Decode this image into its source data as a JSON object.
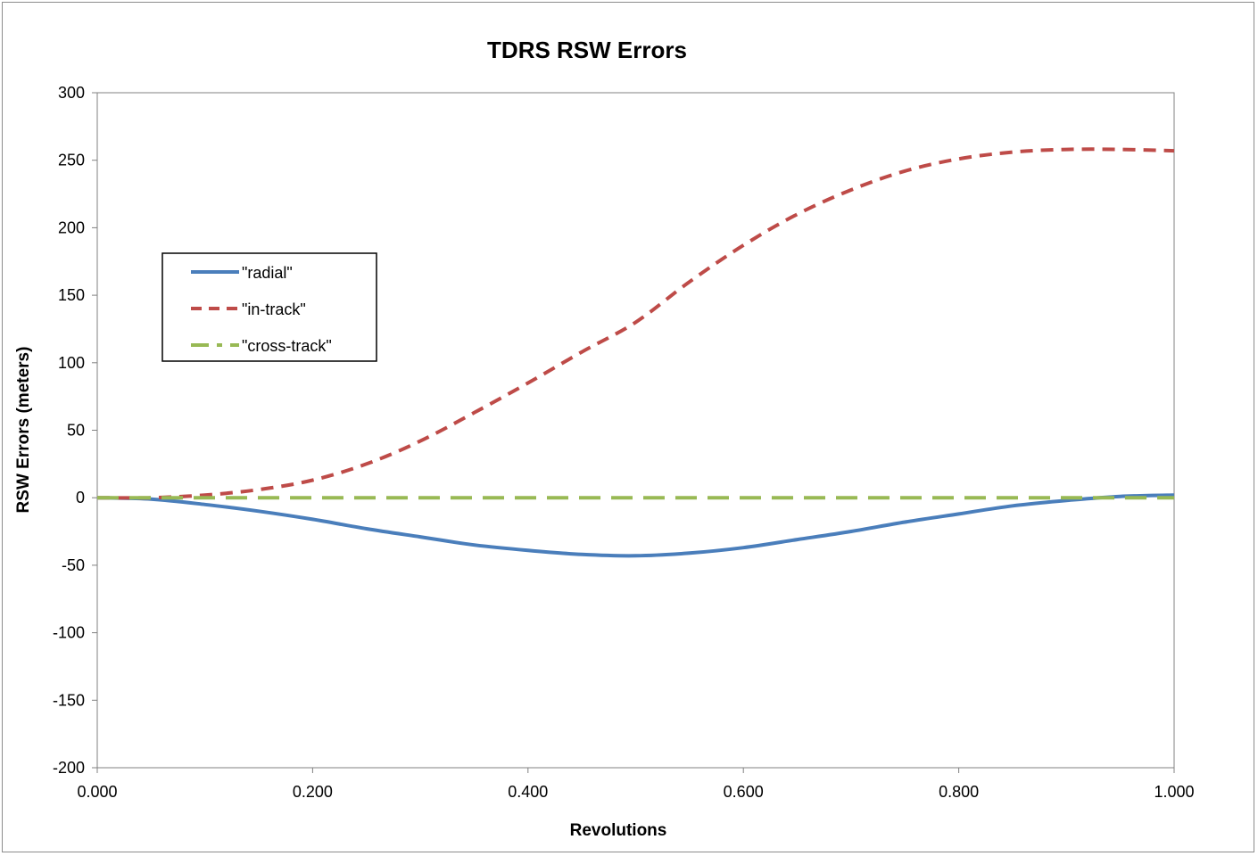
{
  "chart_data": {
    "type": "line",
    "title": "TDRS RSW Errors",
    "xlabel": "Revolutions",
    "ylabel": "RSW Errors (meters)",
    "xlim": [
      0,
      1
    ],
    "ylim": [
      -200,
      300
    ],
    "x_ticks": [
      "0.000",
      "0.200",
      "0.400",
      "0.600",
      "0.800",
      "1.000"
    ],
    "y_ticks": [
      "300",
      "250",
      "200",
      "150",
      "100",
      "50",
      "0",
      "-50",
      "-100",
      "-150",
      "-200"
    ],
    "grid": false,
    "legend_position": "upper-left",
    "x": [
      0.0,
      0.05,
      0.1,
      0.15,
      0.2,
      0.25,
      0.3,
      0.35,
      0.4,
      0.45,
      0.5,
      0.55,
      0.6,
      0.65,
      0.7,
      0.75,
      0.8,
      0.85,
      0.9,
      0.95,
      1.0
    ],
    "series": [
      {
        "name": "\"radial\"",
        "color": "#4a7ebb",
        "style": "solid",
        "values": [
          0,
          -1,
          -5,
          -10,
          -16,
          -23,
          -29,
          -35,
          -39,
          -42,
          -43,
          -41,
          -37,
          -31,
          -25,
          -18,
          -12,
          -6,
          -2,
          1,
          2
        ]
      },
      {
        "name": "\"in-track\"",
        "color": "#be4b48",
        "style": "dashed",
        "values": [
          0,
          0,
          2,
          6,
          13,
          25,
          42,
          63,
          85,
          108,
          130,
          160,
          187,
          210,
          228,
          242,
          251,
          256,
          258,
          258,
          257
        ]
      },
      {
        "name": "\"cross-track\"",
        "color": "#98b954",
        "style": "longdash",
        "values": [
          0,
          0,
          0,
          0,
          0,
          0,
          0,
          0,
          0,
          0,
          0,
          0,
          0,
          0,
          0,
          0,
          0,
          0,
          0,
          0,
          0
        ]
      }
    ]
  }
}
